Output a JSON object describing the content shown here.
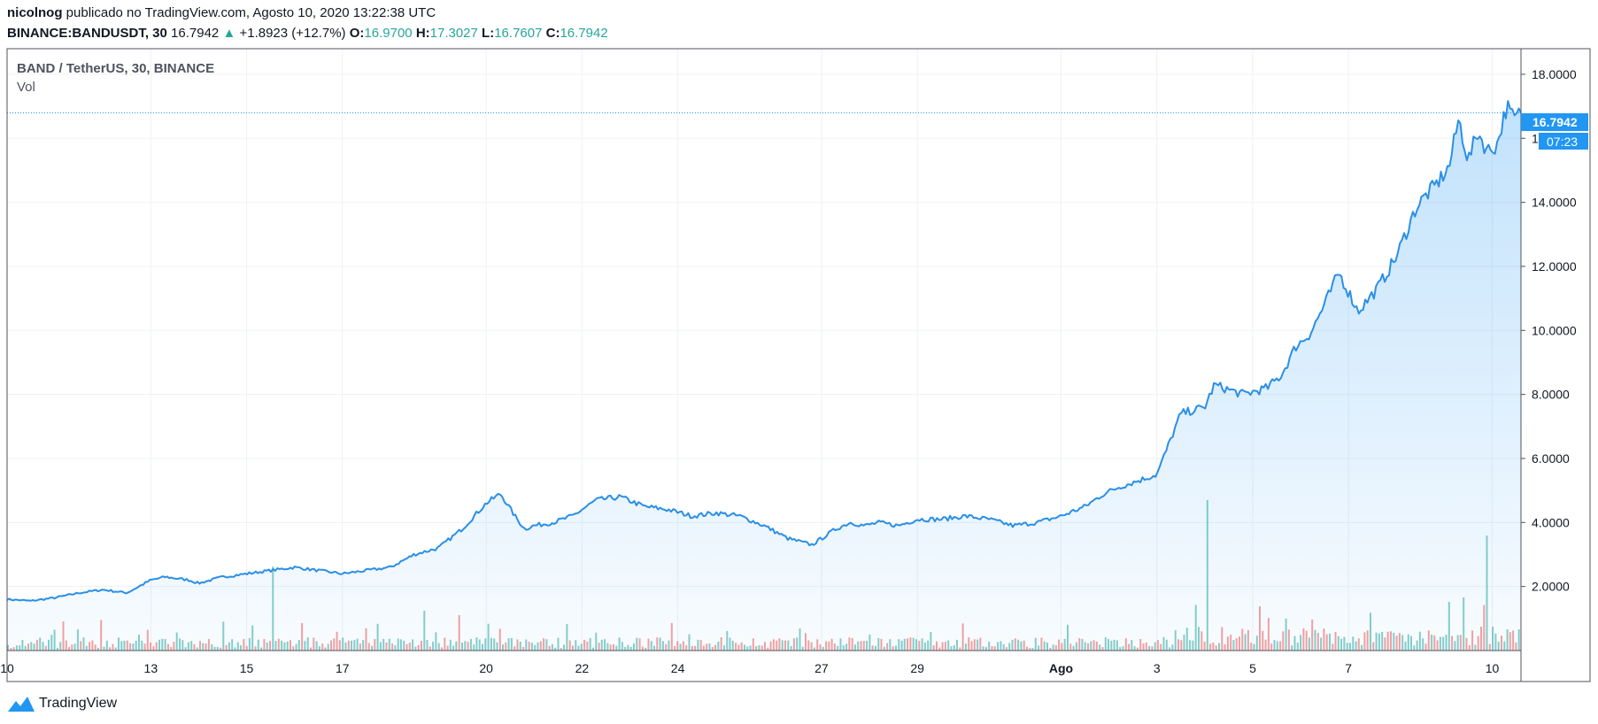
{
  "header": {
    "author": "nicolnog",
    "published": "publicado no TradingView.com, Agosto 10, 2020 13:22:38 UTC",
    "symbol": "BINANCE:BANDUSDT, 30",
    "last": "16.7942",
    "change_arrow": "▲",
    "change": "+1.8923 (+12.7%)",
    "o_label": "O:",
    "o": "16.9700",
    "h_label": "H:",
    "h": "17.3027",
    "l_label": "L:",
    "l": "16.7607",
    "c_label": "C:",
    "c": "16.7942"
  },
  "legend": {
    "title": "BAND / TetherUS, 30, BINANCE",
    "vol": "Vol"
  },
  "price_tag": {
    "value": "16.7942",
    "countdown": "07:23"
  },
  "footer": {
    "brand": "TradingView",
    "logo_icon": "tradingview-logo-icon"
  },
  "colors": {
    "line": "#2a8fe6",
    "up": "#26a69a",
    "down": "#ef5350",
    "grid": "#eef1f5",
    "tag": "#2196f3"
  },
  "chart_data": {
    "type": "area",
    "ylim": [
      0,
      18.8
    ],
    "y_ticks": [
      2,
      4,
      6,
      8,
      10,
      12,
      14,
      16,
      18
    ],
    "y_tick_labels": [
      "2.0000",
      "4.0000",
      "6.0000",
      "8.0000",
      "10.0000",
      "12.0000",
      "14.0000",
      "16.0000",
      "18.0000"
    ],
    "x_tick_labels": [
      "10",
      "13",
      "15",
      "17",
      "20",
      "22",
      "24",
      "27",
      "29",
      "Ago",
      "3",
      "5",
      "7",
      "10"
    ],
    "x_tick_days": [
      0,
      3,
      5,
      7,
      10,
      12,
      14,
      17,
      19,
      22,
      24,
      26,
      28,
      31
    ],
    "x_range_days": [
      0,
      31.6
    ],
    "series": [
      {
        "day": [
          0,
          0.5,
          1,
          1.5,
          2,
          2.5,
          3,
          3.3,
          3.8,
          4,
          4.5,
          5,
          5.5,
          6,
          6.5,
          7,
          7.5,
          8,
          8.5,
          9,
          9.5,
          10,
          10.3,
          10.6,
          10.8,
          11,
          11.4,
          11.8,
          12.3,
          12.8,
          13.3,
          13.8,
          14.3,
          14.8,
          15.3,
          15.8,
          16.3,
          16.8,
          17.3,
          17.6,
          17.9,
          18.2,
          18.6,
          19,
          19.5,
          20,
          20.5,
          21,
          21.5,
          22,
          22.5,
          22.9,
          23.2,
          23.6,
          24,
          24.5,
          25,
          25.2,
          25.8,
          26.3,
          26.6,
          26.9,
          27.2,
          27.5,
          27.8,
          28.2,
          28.6,
          29,
          29.4,
          29.6,
          29.8,
          30.1,
          30.3,
          30.5,
          30.7,
          30.9,
          31.1,
          31.3,
          31.45,
          31.6
        ],
        "close": [
          1.6,
          1.55,
          1.65,
          1.8,
          1.9,
          1.8,
          2.2,
          2.3,
          2.2,
          2.1,
          2.3,
          2.4,
          2.5,
          2.6,
          2.5,
          2.4,
          2.5,
          2.6,
          3.0,
          3.2,
          3.8,
          4.6,
          4.9,
          4.2,
          3.8,
          3.9,
          4.0,
          4.2,
          4.7,
          4.8,
          4.5,
          4.4,
          4.2,
          4.3,
          4.2,
          3.9,
          3.5,
          3.3,
          3.8,
          4.0,
          3.9,
          4.0,
          3.9,
          4.1,
          4.1,
          4.2,
          4.1,
          3.9,
          4.0,
          4.2,
          4.5,
          4.9,
          5.1,
          5.3,
          5.5,
          7.4,
          7.6,
          8.3,
          8.0,
          8.2,
          8.6,
          9.5,
          9.9,
          10.8,
          11.8,
          10.6,
          11.3,
          12.3,
          13.8,
          14.2,
          14.5,
          15.1,
          16.6,
          15.3,
          16.2,
          15.6,
          15.8,
          17.0,
          16.6,
          16.79
        ]
      }
    ]
  }
}
